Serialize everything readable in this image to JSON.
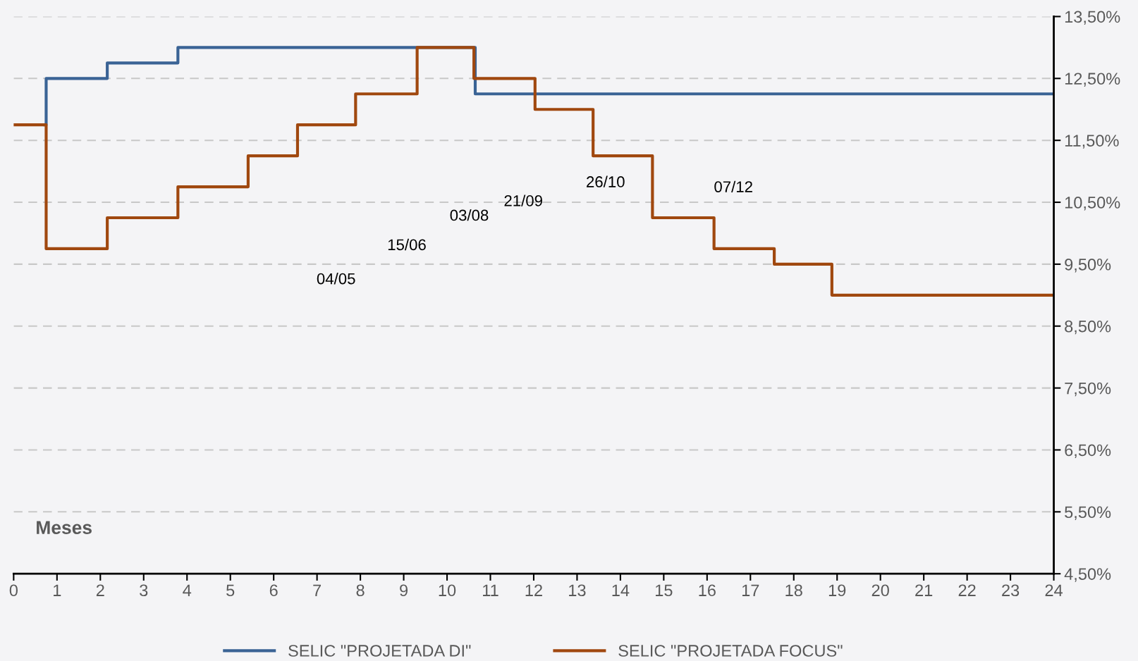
{
  "chart_data": {
    "type": "step",
    "xlabel": "Meses",
    "xlim": [
      0,
      24
    ],
    "xticks": [
      0,
      1,
      2,
      3,
      4,
      5,
      6,
      7,
      8,
      9,
      10,
      11,
      12,
      13,
      14,
      15,
      16,
      17,
      18,
      19,
      20,
      21,
      22,
      23,
      24
    ],
    "ylim": [
      4.5,
      13.5
    ],
    "yticks": [
      {
        "value": 4.5,
        "label": "4,50%"
      },
      {
        "value": 5.5,
        "label": "5,50%"
      },
      {
        "value": 6.5,
        "label": "6,50%"
      },
      {
        "value": 7.5,
        "label": "7,50%"
      },
      {
        "value": 8.5,
        "label": "8,50%"
      },
      {
        "value": 9.5,
        "label": "9,50%"
      },
      {
        "value": 10.5,
        "label": "10,50%"
      },
      {
        "value": 11.5,
        "label": "11,50%"
      },
      {
        "value": 12.5,
        "label": "12,50%"
      },
      {
        "value": 13.5,
        "label": "13,50%"
      }
    ],
    "grid": "y",
    "legend": "bottom",
    "marker": "none",
    "line_style": "solid",
    "series": [
      {
        "name": "SELIC \"PROJETADA DI\"",
        "color": "#3a6395",
        "x": [
          0.72,
          0.75,
          2.16,
          3.79,
          10.65,
          24
        ],
        "values": [
          11.75,
          12.5,
          12.75,
          13.0,
          12.25,
          12.25
        ]
      },
      {
        "name": "SELIC \"PROJETADA FOCUS\"",
        "color": "#a0480f",
        "x": [
          0,
          0.75,
          2.16,
          3.79,
          5.41,
          6.55,
          7.89,
          9.31,
          10.62,
          12.03,
          13.37,
          14.74,
          16.16,
          17.55,
          18.88,
          24
        ],
        "values": [
          11.75,
          9.75,
          10.25,
          10.75,
          11.25,
          11.75,
          12.25,
          13.0,
          12.5,
          12.0,
          11.25,
          10.25,
          9.75,
          9.5,
          9.0,
          9.0
        ]
      }
    ],
    "annotations": [
      "04/05",
      "15/06",
      "03/08",
      "21/09",
      "26/10",
      "07/12"
    ]
  }
}
